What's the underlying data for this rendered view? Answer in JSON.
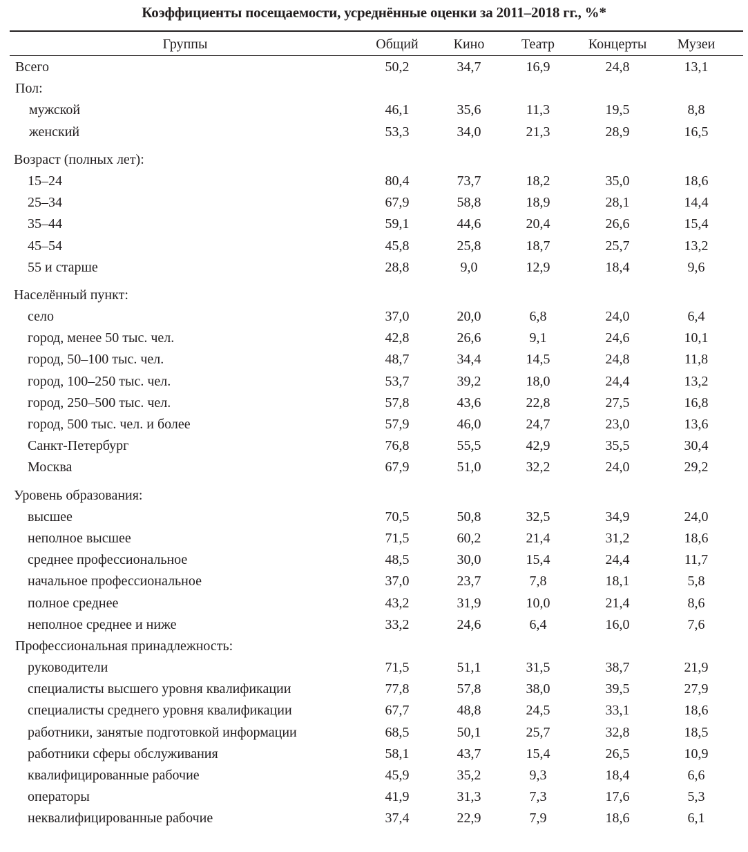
{
  "title": "Коэффициенты посещаемости, усреднённые оценки за 2011–2018 гг., %*",
  "columns": [
    "Группы",
    "Общий",
    "Кино",
    "Театр",
    "Концерты",
    "Музеи"
  ],
  "total": {
    "label": "Всего",
    "values": [
      "50,2",
      "34,7",
      "16,9",
      "24,8",
      "13,1"
    ]
  },
  "sections": [
    {
      "title": "Пол:",
      "rows": [
        {
          "label": "мужской",
          "values": [
            "46,1",
            "35,6",
            "11,3",
            "19,5",
            "8,8"
          ]
        },
        {
          "label": "женский",
          "values": [
            "53,3",
            "34,0",
            "21,3",
            "28,9",
            "16,5"
          ]
        }
      ]
    },
    {
      "title": "Возраст (полных лет):",
      "rows": [
        {
          "label": "15–24",
          "values": [
            "80,4",
            "73,7",
            "18,2",
            "35,0",
            "18,6"
          ]
        },
        {
          "label": "25–34",
          "values": [
            "67,9",
            "58,8",
            "18,9",
            "28,1",
            "14,4"
          ]
        },
        {
          "label": "35–44",
          "values": [
            "59,1",
            "44,6",
            "20,4",
            "26,6",
            "15,4"
          ]
        },
        {
          "label": "45–54",
          "values": [
            "45,8",
            "25,8",
            "18,7",
            "25,7",
            "13,2"
          ]
        },
        {
          "label": "55 и старше",
          "values": [
            "28,8",
            "9,0",
            "12,9",
            "18,4",
            "9,6"
          ]
        }
      ]
    },
    {
      "title": "Населённый пункт:",
      "rows": [
        {
          "label": "село",
          "values": [
            "37,0",
            "20,0",
            "6,8",
            "24,0",
            "6,4"
          ]
        },
        {
          "label": "город, менее 50 тыс. чел.",
          "values": [
            "42,8",
            "26,6",
            "9,1",
            "24,6",
            "10,1"
          ]
        },
        {
          "label": "город, 50–100 тыс. чел.",
          "values": [
            "48,7",
            "34,4",
            "14,5",
            "24,8",
            "11,8"
          ]
        },
        {
          "label": "город, 100–250 тыс. чел.",
          "values": [
            "53,7",
            "39,2",
            "18,0",
            "24,4",
            "13,2"
          ]
        },
        {
          "label": "город, 250–500 тыс. чел.",
          "values": [
            "57,8",
            "43,6",
            "22,8",
            "27,5",
            "16,8"
          ]
        },
        {
          "label": "город,  500 тыс. чел. и более",
          "values": [
            "57,9",
            "46,0",
            "24,7",
            "23,0",
            "13,6"
          ]
        },
        {
          "label": "Санкт-Петербург",
          "values": [
            "76,8",
            "55,5",
            "42,9",
            "35,5",
            "30,4"
          ]
        },
        {
          "label": "Москва",
          "values": [
            "67,9",
            "51,0",
            "32,2",
            "24,0",
            "29,2"
          ]
        }
      ]
    },
    {
      "title": "Уровень образования:",
      "rows": [
        {
          "label": "высшее",
          "values": [
            "70,5",
            "50,8",
            "32,5",
            "34,9",
            "24,0"
          ]
        },
        {
          "label": "неполное высшее",
          "values": [
            "71,5",
            "60,2",
            "21,4",
            "31,2",
            "18,6"
          ]
        },
        {
          "label": "среднее профессиональное",
          "values": [
            "48,5",
            "30,0",
            "15,4",
            "24,4",
            "11,7"
          ]
        },
        {
          "label": "начальное профессиональное",
          "values": [
            "37,0",
            "23,7",
            "7,8",
            "18,1",
            "5,8"
          ]
        },
        {
          "label": "полное среднее",
          "values": [
            "43,2",
            "31,9",
            "10,0",
            "21,4",
            "8,6"
          ]
        },
        {
          "label": "неполное среднее и ниже",
          "values": [
            "33,2",
            "24,6",
            "6,4",
            "16,0",
            "7,6"
          ]
        }
      ]
    },
    {
      "title": "Профессиональная принадлежность:",
      "rows": [
        {
          "label": "руководители",
          "values": [
            "71,5",
            "51,1",
            "31,5",
            "38,7",
            "21,9"
          ]
        },
        {
          "label": "специалисты высшего уровня квалификации",
          "values": [
            "77,8",
            "57,8",
            "38,0",
            "39,5",
            "27,9"
          ]
        },
        {
          "label": "специалисты среднего уровня квалификации",
          "values": [
            "67,7",
            "48,8",
            "24,5",
            "33,1",
            "18,6"
          ]
        },
        {
          "label": "работники, занятые подготовкой информации",
          "values": [
            "68,5",
            "50,1",
            "25,7",
            "32,8",
            "18,5"
          ]
        },
        {
          "label": "работники сферы обслуживания",
          "values": [
            "58,1",
            "43,7",
            "15,4",
            "26,5",
            "10,9"
          ]
        },
        {
          "label": "квалифицированные рабочие",
          "values": [
            "45,9",
            "35,2",
            "9,3",
            "18,4",
            "6,6"
          ]
        },
        {
          "label": "операторы",
          "values": [
            "41,9",
            "31,3",
            "7,3",
            "17,6",
            "5,3"
          ]
        },
        {
          "label": "неквалифицированные рабочие",
          "values": [
            "37,4",
            "22,9",
            "7,9",
            "18,6",
            "6,1"
          ]
        }
      ]
    }
  ]
}
